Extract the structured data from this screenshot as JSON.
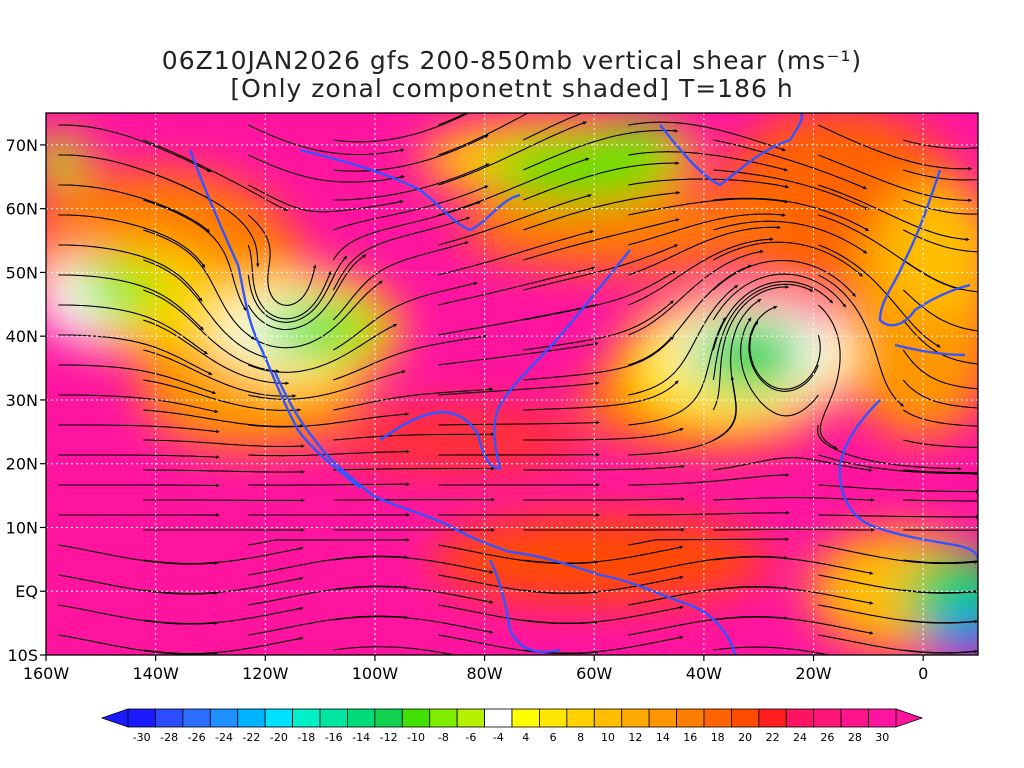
{
  "title": {
    "line1": "06Z10JAN2026 gfs 200-850mb vertical shear (ms⁻¹)",
    "line2": "[Only zonal componetnt shaded] T=186 h"
  },
  "map": {
    "lon_range": [
      -160,
      10
    ],
    "lat_range": [
      -10,
      75
    ],
    "lat_ticks": [
      {
        "value": 70,
        "label": "70N"
      },
      {
        "value": 60,
        "label": "60N"
      },
      {
        "value": 50,
        "label": "50N"
      },
      {
        "value": 40,
        "label": "40N"
      },
      {
        "value": 30,
        "label": "30N"
      },
      {
        "value": 20,
        "label": "20N"
      },
      {
        "value": 10,
        "label": "10N"
      },
      {
        "value": 0,
        "label": "EQ"
      },
      {
        "value": -10,
        "label": "10S"
      }
    ],
    "lon_ticks": [
      {
        "value": -160,
        "label": "160W"
      },
      {
        "value": -140,
        "label": "140W"
      },
      {
        "value": -120,
        "label": "120W"
      },
      {
        "value": -100,
        "label": "100W"
      },
      {
        "value": -80,
        "label": "80W"
      },
      {
        "value": -60,
        "label": "60W"
      },
      {
        "value": -40,
        "label": "40W"
      },
      {
        "value": -20,
        "label": "20W"
      },
      {
        "value": 0,
        "label": "0"
      }
    ],
    "coastline_color": "#3355ff",
    "streamline_color": "#000000",
    "contour_color": "#8a2be2"
  },
  "colorbar": {
    "labels": [
      "-30",
      "-28",
      "-26",
      "-24",
      "-22",
      "-20",
      "-18",
      "-16",
      "-14",
      "-12",
      "-10",
      "-8",
      "-6",
      "-4",
      "4",
      "6",
      "8",
      "10",
      "12",
      "14",
      "16",
      "18",
      "20",
      "22",
      "24",
      "26",
      "28",
      "30"
    ],
    "colors": [
      "#1a1aff",
      "#2a4dff",
      "#2a6dff",
      "#1e90ff",
      "#00b4ff",
      "#00e0ff",
      "#00f0c8",
      "#00e6a0",
      "#00dc78",
      "#10d250",
      "#40e000",
      "#80ec00",
      "#b4f000",
      "#ffffff",
      "#ffff00",
      "#ffe600",
      "#ffd200",
      "#ffbe00",
      "#ffaa00",
      "#ff9600",
      "#ff7d00",
      "#ff6400",
      "#ff4b00",
      "#ff1e1e",
      "#ff1464",
      "#ff1478",
      "#ff148c",
      "#ff14a0"
    ]
  }
}
